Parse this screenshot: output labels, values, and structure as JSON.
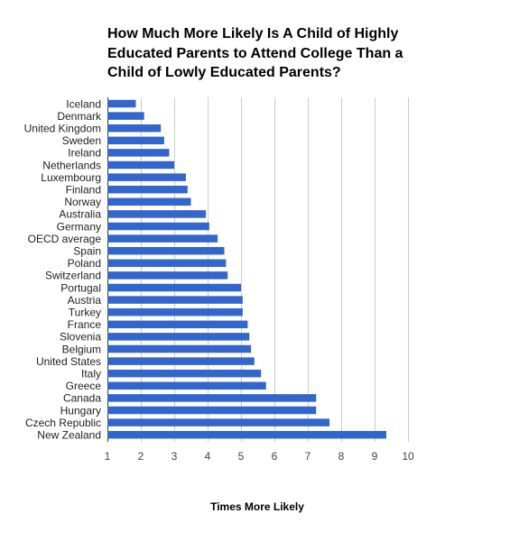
{
  "chart_data": {
    "type": "bar",
    "orientation": "horizontal",
    "title_lines": [
      "How Much More Likely Is A Child of Highly",
      "Educated Parents to Attend College Than a",
      "Child of Lowly Educated Parents?"
    ],
    "xlabel": "Times More Likely",
    "ylabel": "",
    "xlim": [
      1,
      10
    ],
    "x_ticks": [
      "1",
      "2",
      "3",
      "4",
      "5",
      "6",
      "7",
      "8",
      "9",
      "10"
    ],
    "grid": true,
    "legend": "none",
    "bar_color": "#3366cc",
    "categories": [
      "Iceland",
      "Denmark",
      "United Kingdom",
      "Sweden",
      "Ireland",
      "Netherlands",
      "Luxembourg",
      "Finland",
      "Norway",
      "Australia",
      "Germany",
      "OECD average",
      "Spain",
      "Poland",
      "Switzerland",
      "Portugal",
      "Austria",
      "Turkey",
      "France",
      "Slovenia",
      "Belgium",
      "United States",
      "Italy",
      "Greece",
      "Canada",
      "Hungary",
      "Czech Republic",
      "New Zealand"
    ],
    "values": [
      1.85,
      2.1,
      2.6,
      2.7,
      2.85,
      3.0,
      3.35,
      3.4,
      3.5,
      3.95,
      4.05,
      4.3,
      4.5,
      4.55,
      4.6,
      5.0,
      5.05,
      5.05,
      5.2,
      5.25,
      5.3,
      5.4,
      5.6,
      5.75,
      7.25,
      7.25,
      7.65,
      9.35
    ]
  }
}
